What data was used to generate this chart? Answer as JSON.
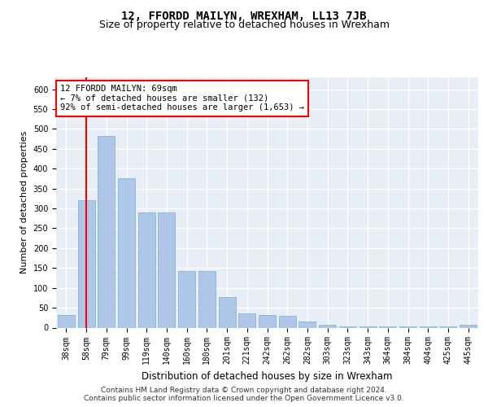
{
  "title": "12, FFORDD MAILYN, WREXHAM, LL13 7JB",
  "subtitle": "Size of property relative to detached houses in Wrexham",
  "xlabel": "Distribution of detached houses by size in Wrexham",
  "ylabel": "Number of detached properties",
  "categories": [
    "38sqm",
    "58sqm",
    "79sqm",
    "99sqm",
    "119sqm",
    "140sqm",
    "160sqm",
    "180sqm",
    "201sqm",
    "221sqm",
    "242sqm",
    "262sqm",
    "282sqm",
    "303sqm",
    "323sqm",
    "343sqm",
    "364sqm",
    "384sqm",
    "404sqm",
    "425sqm",
    "445sqm"
  ],
  "values": [
    32,
    320,
    482,
    375,
    290,
    290,
    143,
    143,
    77,
    35,
    32,
    30,
    15,
    8,
    4,
    4,
    4,
    4,
    4,
    4,
    8
  ],
  "bar_color": "#aec6e8",
  "bar_edge_color": "#7aafd4",
  "vline_color": "red",
  "vline_x": 1.5,
  "annotation_text": "12 FFORDD MAILYN: 69sqm\n← 7% of detached houses are smaller (132)\n92% of semi-detached houses are larger (1,653) →",
  "annotation_box_color": "white",
  "annotation_box_edge": "red",
  "ylim": [
    0,
    630
  ],
  "yticks": [
    0,
    50,
    100,
    150,
    200,
    250,
    300,
    350,
    400,
    450,
    500,
    550,
    600
  ],
  "background_color": "#e8eef5",
  "grid_color": "white",
  "footer": "Contains HM Land Registry data © Crown copyright and database right 2024.\nContains public sector information licensed under the Open Government Licence v3.0.",
  "title_fontsize": 10,
  "subtitle_fontsize": 9,
  "xlabel_fontsize": 8.5,
  "ylabel_fontsize": 8,
  "tick_fontsize": 7,
  "footer_fontsize": 6.5,
  "annot_fontsize": 7.5
}
